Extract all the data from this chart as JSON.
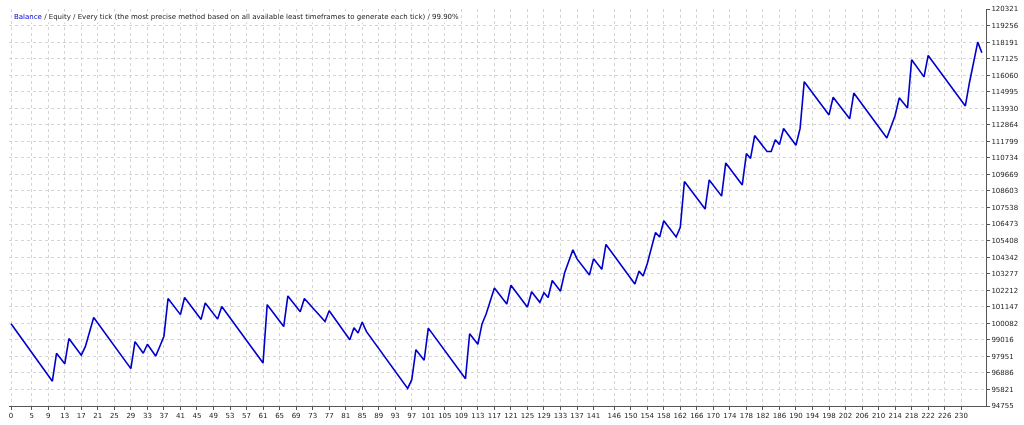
{
  "chart_data": {
    "type": "line",
    "title": "/ Equity / Every tick (the most precise method based on all available least timeframes to generate each tick) / 99.90%",
    "x": [
      0,
      10,
      11,
      13,
      14,
      17,
      18,
      20,
      29,
      30,
      32,
      33,
      35,
      36,
      37,
      38,
      41,
      42,
      46,
      47,
      50,
      51,
      61,
      62,
      66,
      67,
      70,
      71,
      76,
      77,
      82,
      83,
      84,
      85,
      86,
      96,
      97,
      98,
      100,
      101,
      110,
      111,
      113,
      114,
      115,
      117,
      120,
      121,
      125,
      126,
      128,
      129,
      130,
      131,
      133,
      134,
      136,
      137,
      140,
      141,
      143,
      144,
      151,
      152,
      153,
      154,
      156,
      157,
      158,
      161,
      162,
      163,
      168,
      169,
      172,
      173,
      177,
      178,
      179,
      180,
      183,
      184,
      185,
      186,
      187,
      190,
      191,
      192,
      198,
      199,
      203,
      204,
      212,
      214,
      215,
      217,
      218,
      221,
      222,
      231,
      232,
      234,
      235
    ],
    "series": [
      {
        "name": "Balance",
        "color": "#0000cc",
        "values": [
          100050,
          96350,
          98150,
          97470,
          99100,
          98030,
          98590,
          100450,
          97160,
          98900,
          98150,
          98730,
          97970,
          98590,
          99250,
          101680,
          100640,
          101740,
          100330,
          101390,
          100350,
          101160,
          97530,
          101280,
          99870,
          101840,
          100830,
          101680,
          100200,
          100890,
          99020,
          99790,
          99460,
          100160,
          99560,
          95890,
          96450,
          98380,
          97700,
          99770,
          96510,
          99410,
          98730,
          100040,
          100680,
          102360,
          101320,
          102530,
          101120,
          102110,
          101430,
          102050,
          101740,
          102840,
          102150,
          103330,
          104810,
          104230,
          103190,
          104230,
          103560,
          105160,
          102610,
          103440,
          103130,
          103920,
          105930,
          105640,
          106680,
          105640,
          106260,
          109210,
          107440,
          109310,
          108270,
          110410,
          108990,
          111010,
          110700,
          112170,
          111140,
          111140,
          111900,
          111590,
          112630,
          111550,
          112630,
          115640,
          113500,
          114640,
          113250,
          114910,
          112010,
          113460,
          114600,
          113940,
          117050,
          115950,
          117330,
          114080,
          115590,
          118190,
          117500
        ]
      }
    ],
    "xlim": [
      -0.5,
      236
    ],
    "xticks": [
      0,
      5,
      9,
      13,
      17,
      21,
      25,
      29,
      33,
      37,
      41,
      45,
      49,
      53,
      57,
      61,
      65,
      69,
      73,
      77,
      81,
      85,
      89,
      93,
      97,
      101,
      105,
      109,
      113,
      117,
      121,
      125,
      129,
      133,
      137,
      141,
      146,
      150,
      154,
      158,
      162,
      166,
      170,
      174,
      178,
      182,
      186,
      190,
      194,
      198,
      202,
      206,
      210,
      214,
      218,
      222,
      226,
      230
    ],
    "ylim": [
      94755,
      120321
    ],
    "yticks": [
      94755,
      95821,
      96886,
      97951,
      99016,
      100082,
      101147,
      102212,
      103277,
      104342,
      105408,
      106473,
      107538,
      108603,
      109669,
      110734,
      111799,
      112864,
      113930,
      114995,
      116060,
      117125,
      118191,
      119256,
      120321
    ],
    "grid": true,
    "legend": "top left",
    "marker": "none",
    "line_style": "solid"
  }
}
